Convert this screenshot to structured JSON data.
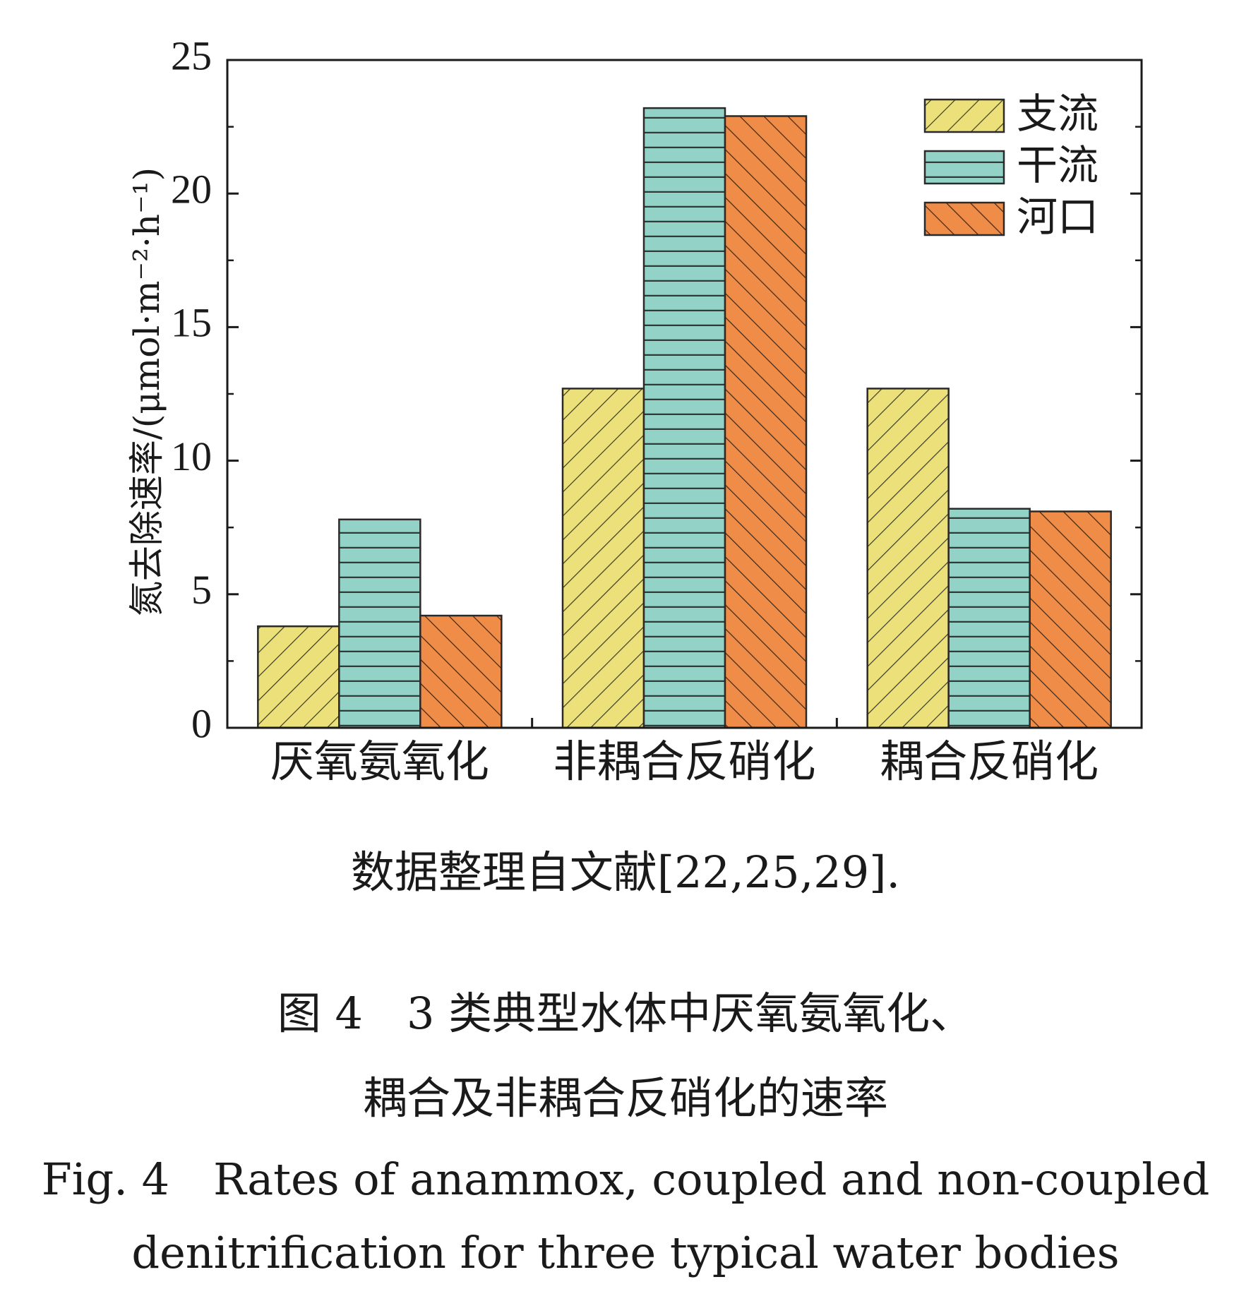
{
  "chart_data": {
    "type": "bar",
    "categories": [
      "厌氧氨氧化",
      "非耦合反硝化",
      "耦合反硝化"
    ],
    "series": [
      {
        "name": "支流",
        "values": [
          3.8,
          12.7,
          12.7
        ],
        "color": "#ECE07A",
        "pattern": "hatch-forward"
      },
      {
        "name": "干流",
        "values": [
          7.8,
          23.2,
          8.2
        ],
        "color": "#93D2C7",
        "pattern": "horizontal-lines"
      },
      {
        "name": "河口",
        "values": [
          4.2,
          22.9,
          8.1
        ],
        "color": "#EE8C48",
        "pattern": "hatch-backward"
      }
    ],
    "ylabel": "氮去除速率/(μmol·m⁻²·h⁻¹)",
    "xlabel": "",
    "ylim": [
      0,
      25
    ],
    "yticks": [
      "0",
      "5",
      "10",
      "15",
      "20",
      "25"
    ],
    "legend_position": "top-right",
    "grid": false
  },
  "source_note": "数据整理自文献[22,25,29].",
  "caption": {
    "cn_line1": "图 4　3 类典型水体中厌氧氨氧化、",
    "cn_line2": "耦合及非耦合反硝化的速率",
    "en_line1": "Fig. 4　Rates of anammox, coupled and non-coupled",
    "en_line2": "denitrification for three typical water bodies"
  }
}
